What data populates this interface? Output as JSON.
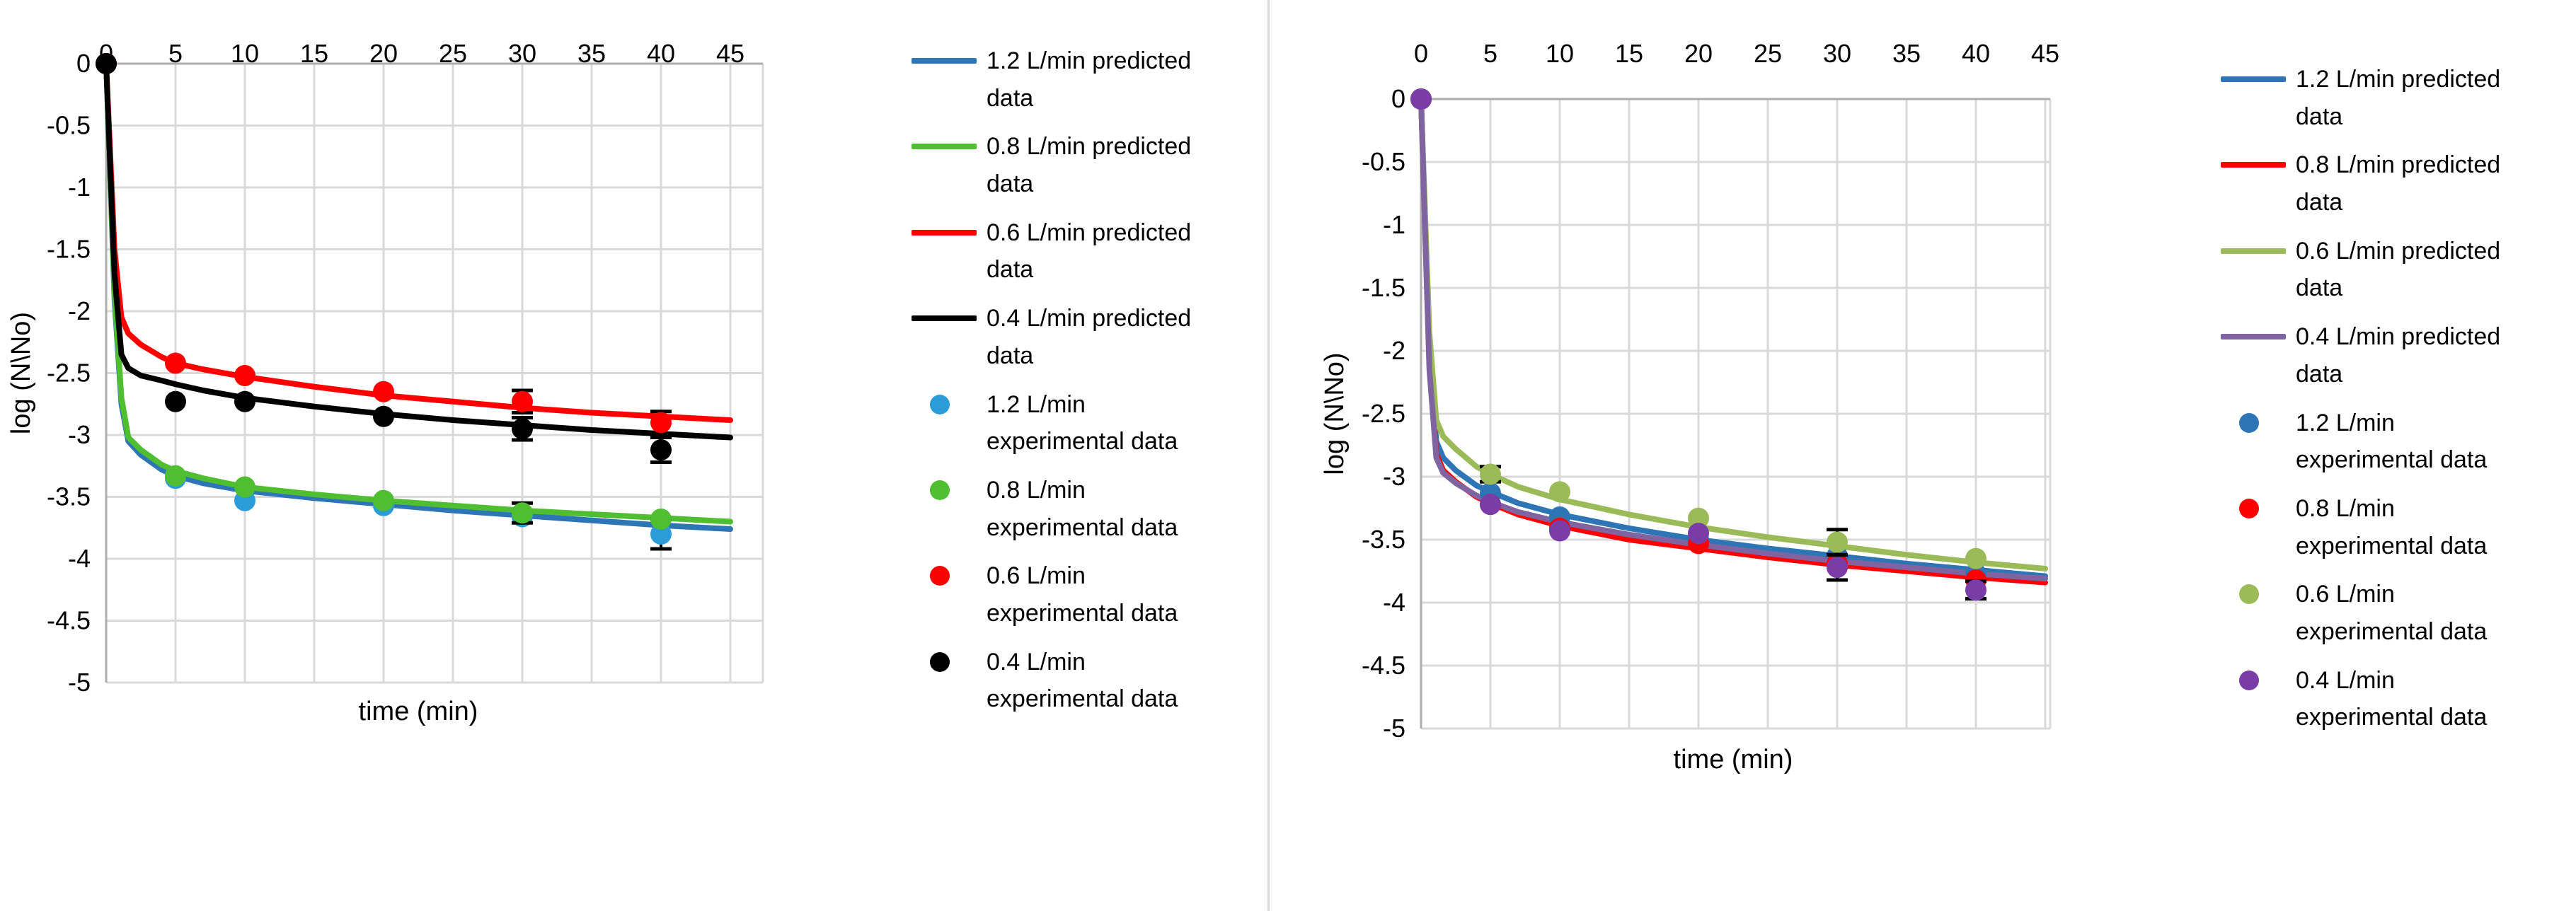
{
  "page": {
    "background": "#ffffff",
    "divider_color": "#d9d9d9",
    "grid_color": "#d9d9d9",
    "axis_color": "#adadad",
    "error_bar_color": "#000000"
  },
  "chart_data": [
    {
      "type": "line",
      "title": "",
      "xlabel": "time (min)",
      "ylabel": "log (N\\No)",
      "x_ticks": [
        0,
        5,
        10,
        15,
        20,
        25,
        30,
        35,
        40,
        45
      ],
      "y_ticks": [
        0,
        -0.5,
        -1,
        -1.5,
        -2,
        -2.5,
        -3,
        -3.5,
        -4,
        -4.5,
        -5
      ],
      "xlim": [
        0,
        45
      ],
      "ylim": [
        -5,
        0
      ],
      "grid": true,
      "legend_position": "right",
      "series": [
        {
          "name": "1.2 L/min predicted data",
          "color": "#2E75B6",
          "points": [
            [
              0,
              0
            ],
            [
              0.6,
              -1.9
            ],
            [
              1.1,
              -2.75
            ],
            [
              1.6,
              -3.05
            ],
            [
              2.5,
              -3.16
            ],
            [
              4,
              -3.28
            ],
            [
              5,
              -3.33
            ],
            [
              7,
              -3.39
            ],
            [
              10,
              -3.45
            ],
            [
              15,
              -3.51
            ],
            [
              20,
              -3.56
            ],
            [
              25,
              -3.61
            ],
            [
              30,
              -3.65
            ],
            [
              35,
              -3.69
            ],
            [
              40,
              -3.73
            ],
            [
              45,
              -3.76
            ]
          ]
        },
        {
          "name": "0.8 L/min predicted data",
          "color": "#4FBE31",
          "points": [
            [
              0,
              0
            ],
            [
              0.6,
              -1.85
            ],
            [
              1.1,
              -2.7
            ],
            [
              1.6,
              -3.02
            ],
            [
              2.5,
              -3.12
            ],
            [
              4,
              -3.24
            ],
            [
              5,
              -3.29
            ],
            [
              7,
              -3.35
            ],
            [
              10,
              -3.42
            ],
            [
              15,
              -3.48
            ],
            [
              20,
              -3.53
            ],
            [
              25,
              -3.57
            ],
            [
              30,
              -3.61
            ],
            [
              35,
              -3.64
            ],
            [
              40,
              -3.67
            ],
            [
              45,
              -3.7
            ]
          ]
        },
        {
          "name": "0.6 L/min predicted data",
          "color": "#FF0000",
          "points": [
            [
              0,
              0
            ],
            [
              0.6,
              -1.5
            ],
            [
              1.1,
              -2.05
            ],
            [
              1.6,
              -2.18
            ],
            [
              2.5,
              -2.27
            ],
            [
              4,
              -2.37
            ],
            [
              5,
              -2.42
            ],
            [
              7,
              -2.47
            ],
            [
              10,
              -2.53
            ],
            [
              15,
              -2.61
            ],
            [
              20,
              -2.68
            ],
            [
              25,
              -2.73
            ],
            [
              30,
              -2.78
            ],
            [
              35,
              -2.82
            ],
            [
              40,
              -2.85
            ],
            [
              45,
              -2.88
            ]
          ]
        },
        {
          "name": "0.4 L/min predicted data",
          "color": "#000000",
          "points": [
            [
              0,
              0
            ],
            [
              0.6,
              -1.7
            ],
            [
              1.1,
              -2.35
            ],
            [
              1.6,
              -2.46
            ],
            [
              2.5,
              -2.52
            ],
            [
              4,
              -2.56
            ],
            [
              5,
              -2.59
            ],
            [
              7,
              -2.64
            ],
            [
              10,
              -2.7
            ],
            [
              15,
              -2.77
            ],
            [
              20,
              -2.83
            ],
            [
              25,
              -2.88
            ],
            [
              30,
              -2.92
            ],
            [
              35,
              -2.96
            ],
            [
              40,
              -2.99
            ],
            [
              45,
              -3.02
            ]
          ]
        }
      ],
      "scatter": [
        {
          "name": "1.2 L/min experimental data",
          "color": "#2B9CD8",
          "x": [
            0,
            5,
            10,
            20,
            30,
            40
          ],
          "y": [
            0,
            -3.35,
            -3.53,
            -3.57,
            -3.66,
            -3.8
          ],
          "err": [
            null,
            null,
            null,
            null,
            null,
            0.12
          ]
        },
        {
          "name": "0.8 L/min experimental data",
          "color": "#4FBE31",
          "x": [
            0,
            5,
            10,
            20,
            30,
            40
          ],
          "y": [
            0,
            -3.33,
            -3.42,
            -3.53,
            -3.63,
            -3.68
          ],
          "err": [
            null,
            null,
            null,
            null,
            0.08,
            null
          ]
        },
        {
          "name": "0.6 L/min experimental data",
          "color": "#FF0000",
          "x": [
            0,
            5,
            10,
            20,
            30,
            40
          ],
          "y": [
            0,
            -2.42,
            -2.52,
            -2.65,
            -2.73,
            -2.9
          ],
          "err": [
            null,
            null,
            null,
            null,
            0.09,
            0.09
          ]
        },
        {
          "name": "0.4 L/min experimental data",
          "color": "#000000",
          "x": [
            0,
            5,
            10,
            20,
            30,
            40
          ],
          "y": [
            0,
            -2.73,
            -2.73,
            -2.85,
            -2.95,
            -3.12
          ],
          "err": [
            null,
            null,
            null,
            null,
            0.09,
            0.1
          ]
        }
      ],
      "legend": [
        {
          "marker": "line",
          "color": "#2E75B6",
          "label": "1.2 L/min predicted\ndata"
        },
        {
          "marker": "line",
          "color": "#4FBE31",
          "label": "0.8 L/min predicted\ndata"
        },
        {
          "marker": "line",
          "color": "#FF0000",
          "label": "0.6 L/min predicted\ndata"
        },
        {
          "marker": "line",
          "color": "#000000",
          "label": "0.4 L/min predicted\ndata"
        },
        {
          "marker": "dot",
          "color": "#2B9CD8",
          "label": "1.2 L/min\nexperimental data"
        },
        {
          "marker": "dot",
          "color": "#4FBE31",
          "label": "0.8 L/min\nexperimental data"
        },
        {
          "marker": "dot",
          "color": "#FF0000",
          "label": "0.6 L/min\nexperimental data"
        },
        {
          "marker": "dot",
          "color": "#000000",
          "label": "0.4 L/min\nexperimental data"
        }
      ]
    },
    {
      "type": "line",
      "title": "",
      "xlabel": "time (min)",
      "ylabel": "log (N\\No)",
      "x_ticks": [
        0,
        5,
        10,
        15,
        20,
        25,
        30,
        35,
        40,
        45
      ],
      "y_ticks": [
        0,
        -0.5,
        -1,
        -1.5,
        -2,
        -2.5,
        -3,
        -3.5,
        -4,
        -4.5,
        -5
      ],
      "xlim": [
        0,
        45
      ],
      "ylim": [
        -5,
        0
      ],
      "grid": true,
      "legend_position": "right",
      "series": [
        {
          "name": "1.2 L/min predicted data",
          "color": "#2E75B6",
          "points": [
            [
              0,
              0
            ],
            [
              0.6,
              -2.0
            ],
            [
              1.1,
              -2.72
            ],
            [
              1.6,
              -2.85
            ],
            [
              2.5,
              -2.95
            ],
            [
              4,
              -3.07
            ],
            [
              5,
              -3.12
            ],
            [
              7,
              -3.21
            ],
            [
              10,
              -3.3
            ],
            [
              15,
              -3.41
            ],
            [
              20,
              -3.5
            ],
            [
              25,
              -3.57
            ],
            [
              30,
              -3.63
            ],
            [
              35,
              -3.69
            ],
            [
              40,
              -3.74
            ],
            [
              45,
              -3.79
            ]
          ]
        },
        {
          "name": "0.8 L/min predicted data",
          "color": "#FF0000",
          "points": [
            [
              0,
              0
            ],
            [
              0.6,
              -2.1
            ],
            [
              1.1,
              -2.82
            ],
            [
              1.6,
              -2.95
            ],
            [
              2.5,
              -3.04
            ],
            [
              4,
              -3.16
            ],
            [
              5,
              -3.21
            ],
            [
              7,
              -3.3
            ],
            [
              10,
              -3.39
            ],
            [
              15,
              -3.5
            ],
            [
              20,
              -3.57
            ],
            [
              25,
              -3.64
            ],
            [
              30,
              -3.7
            ],
            [
              35,
              -3.75
            ],
            [
              40,
              -3.8
            ],
            [
              45,
              -3.84
            ]
          ]
        },
        {
          "name": "0.6 L/min predicted data",
          "color": "#9BBB59",
          "points": [
            [
              0,
              0
            ],
            [
              0.6,
              -1.85
            ],
            [
              1.1,
              -2.55
            ],
            [
              1.6,
              -2.68
            ],
            [
              2.5,
              -2.78
            ],
            [
              4,
              -2.92
            ],
            [
              5,
              -2.98
            ],
            [
              7,
              -3.08
            ],
            [
              10,
              -3.18
            ],
            [
              15,
              -3.3
            ],
            [
              20,
              -3.4
            ],
            [
              25,
              -3.48
            ],
            [
              30,
              -3.55
            ],
            [
              35,
              -3.62
            ],
            [
              40,
              -3.68
            ],
            [
              45,
              -3.73
            ]
          ]
        },
        {
          "name": "0.4 L/min predicted data",
          "color": "#8064A2",
          "points": [
            [
              0,
              0
            ],
            [
              0.6,
              -2.15
            ],
            [
              1.1,
              -2.85
            ],
            [
              1.6,
              -2.97
            ],
            [
              2.5,
              -3.05
            ],
            [
              4,
              -3.15
            ],
            [
              5,
              -3.2
            ],
            [
              7,
              -3.28
            ],
            [
              10,
              -3.36
            ],
            [
              15,
              -3.46
            ],
            [
              20,
              -3.54
            ],
            [
              25,
              -3.61
            ],
            [
              30,
              -3.67
            ],
            [
              35,
              -3.72
            ],
            [
              40,
              -3.77
            ],
            [
              45,
              -3.81
            ]
          ]
        }
      ],
      "scatter": [
        {
          "name": "1.2 L/min experimental data",
          "color": "#2E75B6",
          "x": [
            0,
            5,
            10,
            20,
            30,
            40
          ],
          "y": [
            0,
            -3.13,
            -3.32,
            -3.5,
            -3.63,
            -3.77
          ],
          "err": [
            null,
            null,
            null,
            null,
            null,
            null
          ]
        },
        {
          "name": "0.8 L/min experimental data",
          "color": "#FF0000",
          "x": [
            0,
            5,
            10,
            20,
            30,
            40
          ],
          "y": [
            0,
            -3.22,
            -3.41,
            -3.53,
            -3.69,
            -3.82
          ],
          "err": [
            null,
            null,
            null,
            null,
            null,
            null
          ]
        },
        {
          "name": "0.6 L/min experimental data",
          "color": "#9BBB59",
          "x": [
            0,
            5,
            10,
            20,
            30,
            40
          ],
          "y": [
            0,
            -2.98,
            -3.12,
            -3.33,
            -3.52,
            -3.65
          ],
          "err": [
            null,
            0.06,
            null,
            null,
            0.1,
            null
          ]
        },
        {
          "name": "0.4 L/min experimental data",
          "color": "#7A3DA8",
          "x": [
            0,
            5,
            10,
            20,
            30,
            40
          ],
          "y": [
            0,
            -3.22,
            -3.43,
            -3.45,
            -3.72,
            -3.9
          ],
          "err": [
            null,
            null,
            null,
            null,
            0.1,
            0.07
          ]
        }
      ],
      "legend": [
        {
          "marker": "line",
          "color": "#2E75B6",
          "label": "1.2 L/min predicted\ndata"
        },
        {
          "marker": "line",
          "color": "#FF0000",
          "label": "0.8 L/min predicted\ndata"
        },
        {
          "marker": "line",
          "color": "#9BBB59",
          "label": "0.6 L/min predicted\ndata"
        },
        {
          "marker": "line",
          "color": "#8064A2",
          "label": "0.4 L/min predicted\ndata"
        },
        {
          "marker": "dot",
          "color": "#2E75B6",
          "label": "1.2 L/min\nexperimental data"
        },
        {
          "marker": "dot",
          "color": "#FF0000",
          "label": "0.8 L/min\nexperimental data"
        },
        {
          "marker": "dot",
          "color": "#9BBB59",
          "label": "0.6 L/min\nexperimental data"
        },
        {
          "marker": "dot",
          "color": "#7A3DA8",
          "label": "0.4 L/min\nexperimental data"
        }
      ]
    }
  ]
}
